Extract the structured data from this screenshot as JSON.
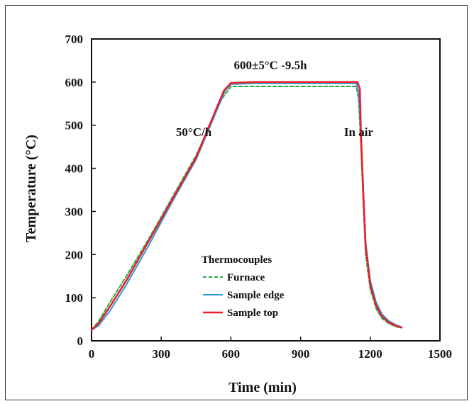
{
  "chart_data": {
    "type": "line",
    "xlabel": "Time (min)",
    "ylabel": "Temperature (°C)",
    "xlim": [
      0,
      1500
    ],
    "ylim": [
      0,
      700
    ],
    "xticks": [
      0,
      300,
      600,
      900,
      1200,
      1500
    ],
    "yticks": [
      0,
      100,
      200,
      300,
      400,
      500,
      600,
      700
    ],
    "grid": false,
    "legend": {
      "title": "Thermocouples",
      "placement": "bottom-center"
    },
    "annotations": [
      {
        "text": "600±5°C -9.5h",
        "x": 770,
        "y": 630
      },
      {
        "text": "50°C/h",
        "x": 440,
        "y": 475
      },
      {
        "text": "In air",
        "x": 1150,
        "y": 475
      }
    ],
    "series": [
      {
        "name": "Furnace",
        "color": "#2aa84a",
        "dash": true,
        "x": [
          0,
          30,
          80,
          150,
          250,
          350,
          450,
          560,
          600,
          700,
          900,
          1100,
          1140,
          1150,
          1160,
          1170,
          1180,
          1200,
          1225,
          1250,
          1280,
          1310,
          1335
        ],
        "y": [
          25,
          45,
          90,
          150,
          240,
          335,
          430,
          560,
          590,
          590,
          590,
          590,
          590,
          560,
          450,
          320,
          200,
          120,
          75,
          52,
          40,
          33,
          30
        ]
      },
      {
        "name": "Sample edge",
        "color": "#2b9bd8",
        "dash": false,
        "x": [
          0,
          30,
          80,
          150,
          250,
          350,
          450,
          575,
          600,
          700,
          900,
          1100,
          1140,
          1150,
          1160,
          1170,
          1180,
          1200,
          1225,
          1250,
          1280,
          1310,
          1335
        ],
        "y": [
          25,
          35,
          70,
          130,
          225,
          325,
          420,
          580,
          595,
          597,
          597,
          597,
          597,
          575,
          470,
          350,
          230,
          140,
          90,
          62,
          46,
          37,
          32
        ]
      },
      {
        "name": "Sample top",
        "color": "#e8202a",
        "dash": false,
        "x": [
          0,
          30,
          80,
          150,
          250,
          350,
          450,
          570,
          600,
          700,
          900,
          1100,
          1145,
          1155,
          1160,
          1170,
          1180,
          1200,
          1225,
          1250,
          1280,
          1310,
          1335
        ],
        "y": [
          25,
          40,
          80,
          140,
          235,
          330,
          425,
          580,
          598,
          600,
          600,
          600,
          600,
          585,
          480,
          340,
          220,
          130,
          82,
          57,
          43,
          35,
          31
        ]
      }
    ]
  }
}
